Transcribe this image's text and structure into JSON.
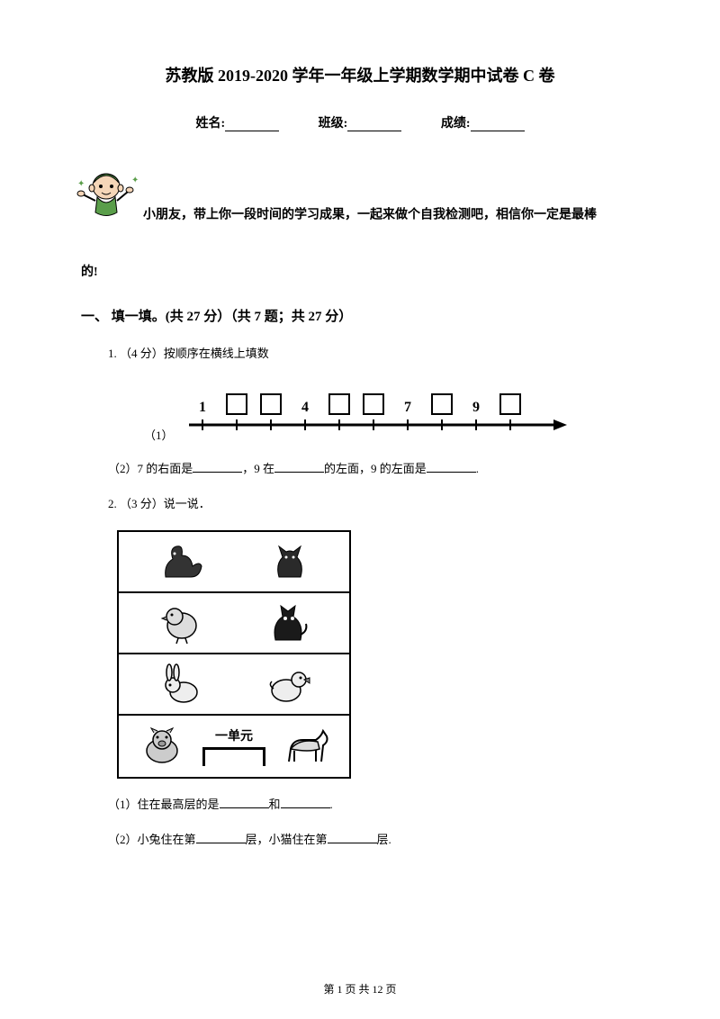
{
  "title": "苏教版 2019-2020 学年一年级上学期数学期中试卷 C 卷",
  "info": {
    "name_label": "姓名:",
    "class_label": "班级:",
    "score_label": "成绩:"
  },
  "intro": {
    "line1": "小朋友，带上你一段时间的学习成果，一起来做个自我检测吧，相信你一定是最棒",
    "line2": "的!"
  },
  "section1": {
    "heading": "一、 填一填。(共 27 分）（共 7 题；共 27 分）",
    "q1": {
      "text": "1. （4 分）按顺序在横线上填数",
      "number_line": {
        "labels": [
          "1",
          "",
          "",
          "4",
          "",
          "",
          "7",
          "",
          "9",
          ""
        ],
        "boxes_at": [
          1,
          2,
          4,
          5,
          7,
          9
        ],
        "fixed_at": {
          "0": "1",
          "3": "4",
          "6": "7",
          "8": "9"
        }
      },
      "sub1_label": "（1）",
      "sub2": "（2）7 的右面是",
      "sub2_b": "，9 在",
      "sub2_c": "的左面，9 的左面是",
      "sub2_d": "."
    },
    "q2": {
      "text": "2. （3 分）说一说．",
      "unit_label": "一单元",
      "sub1_a": "（1）住在最高层的是",
      "sub1_b": "和",
      "sub1_c": ".",
      "sub2_a": "（2）小兔住在第",
      "sub2_b": "层，小猫住在第",
      "sub2_c": "层."
    }
  },
  "footer": {
    "text": "第 1 页 共 12 页"
  },
  "colors": {
    "text": "#000000",
    "bg": "#ffffff",
    "kid_skin": "#f5d6b8",
    "kid_green": "#5a9e4a"
  }
}
